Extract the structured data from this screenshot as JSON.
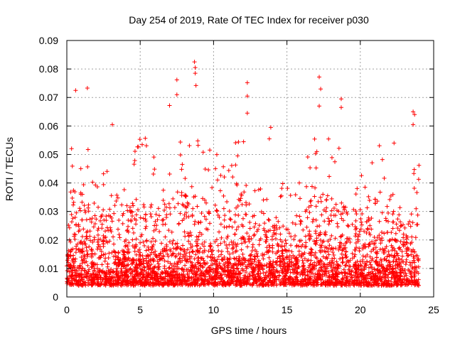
{
  "chart_data": {
    "type": "scatter",
    "title": "Day 254 of 2019, Rate Of TEC Index for receiver p030",
    "xlabel": "GPS time / hours",
    "ylabel": "ROTI / TECUs",
    "xlim": [
      0,
      25
    ],
    "ylim": [
      0,
      0.09
    ],
    "xticks": [
      "0",
      "5",
      "10",
      "15",
      "20",
      "25"
    ],
    "yticks": [
      "0",
      "0.01",
      "0.02",
      "0.03",
      "0.04",
      "0.05",
      "0.06",
      "0.07",
      "0.08",
      "0.09"
    ],
    "xtick_values": [
      0,
      5,
      10,
      15,
      20,
      25
    ],
    "ytick_values": [
      0,
      0.01,
      0.02,
      0.03,
      0.04,
      0.05,
      0.06,
      0.07,
      0.08,
      0.09
    ],
    "grid": true,
    "marker": "plus",
    "color": "#ff0000",
    "data_x_range": [
      0,
      24
    ],
    "highlight_points": [
      {
        "x": 0.6,
        "y": 0.0725
      },
      {
        "x": 1.4,
        "y": 0.0733
      },
      {
        "x": 3.1,
        "y": 0.0605
      },
      {
        "x": 7.0,
        "y": 0.0672
      },
      {
        "x": 7.5,
        "y": 0.0762
      },
      {
        "x": 7.5,
        "y": 0.071
      },
      {
        "x": 8.7,
        "y": 0.0825
      },
      {
        "x": 8.75,
        "y": 0.0805
      },
      {
        "x": 8.75,
        "y": 0.0785
      },
      {
        "x": 8.8,
        "y": 0.0742
      },
      {
        "x": 12.3,
        "y": 0.0752
      },
      {
        "x": 12.3,
        "y": 0.0705
      },
      {
        "x": 12.3,
        "y": 0.0645
      },
      {
        "x": 13.9,
        "y": 0.0595
      },
      {
        "x": 13.8,
        "y": 0.0555
      },
      {
        "x": 17.2,
        "y": 0.0772
      },
      {
        "x": 17.3,
        "y": 0.073
      },
      {
        "x": 17.2,
        "y": 0.067
      },
      {
        "x": 18.7,
        "y": 0.0695
      },
      {
        "x": 18.7,
        "y": 0.0665
      },
      {
        "x": 23.6,
        "y": 0.065
      },
      {
        "x": 23.7,
        "y": 0.064
      },
      {
        "x": 23.6,
        "y": 0.0605
      },
      {
        "x": 22.3,
        "y": 0.054
      }
    ],
    "envelope": [
      {
        "x": 0,
        "base": 0.012,
        "peak": 0.036
      },
      {
        "x": 0.5,
        "base": 0.013,
        "peak": 0.052
      },
      {
        "x": 1,
        "base": 0.012,
        "peak": 0.048
      },
      {
        "x": 2,
        "base": 0.011,
        "peak": 0.035
      },
      {
        "x": 3,
        "base": 0.012,
        "peak": 0.05
      },
      {
        "x": 4,
        "base": 0.011,
        "peak": 0.04
      },
      {
        "x": 5,
        "base": 0.012,
        "peak": 0.048
      },
      {
        "x": 6,
        "base": 0.011,
        "peak": 0.042
      },
      {
        "x": 7,
        "base": 0.011,
        "peak": 0.044
      },
      {
        "x": 8,
        "base": 0.013,
        "peak": 0.048
      },
      {
        "x": 9,
        "base": 0.013,
        "peak": 0.046
      },
      {
        "x": 10,
        "base": 0.013,
        "peak": 0.042
      },
      {
        "x": 11,
        "base": 0.012,
        "peak": 0.04
      },
      {
        "x": 12,
        "base": 0.014,
        "peak": 0.05
      },
      {
        "x": 13,
        "base": 0.011,
        "peak": 0.03
      },
      {
        "x": 14,
        "base": 0.011,
        "peak": 0.035
      },
      {
        "x": 15,
        "base": 0.011,
        "peak": 0.03
      },
      {
        "x": 16,
        "base": 0.011,
        "peak": 0.035
      },
      {
        "x": 17,
        "base": 0.013,
        "peak": 0.048
      },
      {
        "x": 18,
        "base": 0.012,
        "peak": 0.045
      },
      {
        "x": 19,
        "base": 0.011,
        "peak": 0.04
      },
      {
        "x": 20,
        "base": 0.012,
        "peak": 0.038
      },
      {
        "x": 21,
        "base": 0.012,
        "peak": 0.048
      },
      {
        "x": 22,
        "base": 0.011,
        "peak": 0.036
      },
      {
        "x": 23,
        "base": 0.011,
        "peak": 0.035
      },
      {
        "x": 24,
        "base": 0.012,
        "peak": 0.04
      }
    ]
  }
}
